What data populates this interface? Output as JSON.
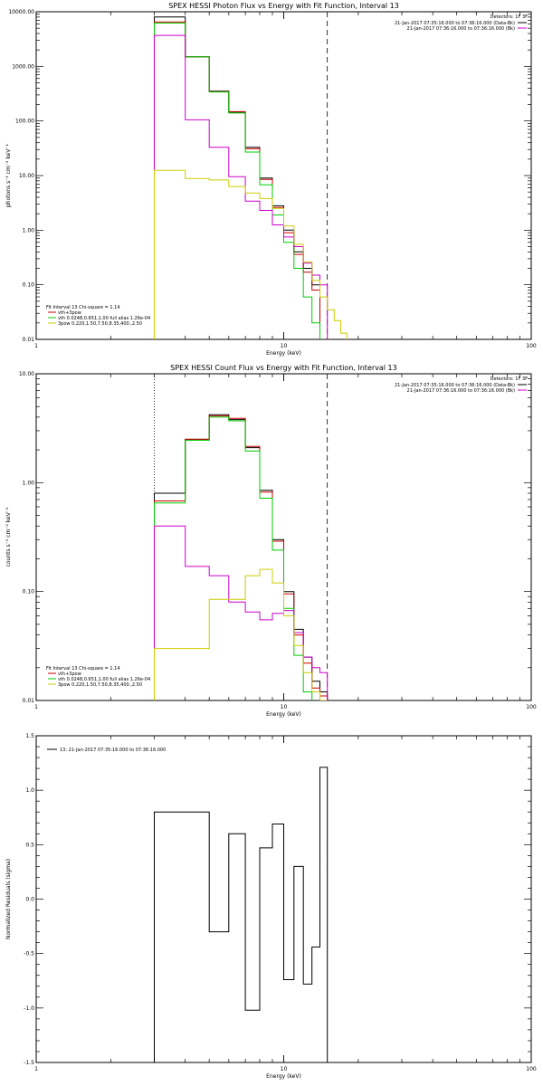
{
  "chart_data": [
    {
      "type": "line",
      "title": "SPEX HESSI Photon Flux vs Energy with Fit Function, Interval 13",
      "xlabel": "Energy (keV)",
      "ylabel": "photons s⁻¹ cm⁻² keV⁻¹",
      "xscale": "log",
      "yscale": "log",
      "xlim": [
        1,
        100
      ],
      "ylim": [
        0.01,
        10000
      ],
      "x_ticks": [
        "1",
        "10",
        "100"
      ],
      "y_ticks": [
        "0.01",
        "0.10",
        "1.00",
        "10.00",
        "100.00",
        "1000.00",
        "10000.00"
      ],
      "detectors": "Detectors: 1F 3F",
      "legend_top": [
        {
          "text": "21-Jan-2017 07:35:16.000 to 07:36:16.000 (Data-Bk)",
          "color": "#000000"
        },
        {
          "text": "21-Jan-2017 07:36:16.000 to 07:36:16.000 (Bk)",
          "color": "#cc00cc"
        }
      ],
      "legend_bottom": [
        {
          "text": "Fit Interval 13   Chi-square = 1.14",
          "color": null
        },
        {
          "text": "vth+3pow",
          "color": "#cc0000"
        },
        {
          "text": "vth 0.0248,0.651,1.00  full alias 1.26e-04",
          "color": "#00cc00"
        },
        {
          "text": "3pow 0.220,1.50,7.50,8.35,400.,2.50",
          "color": "#cccc00"
        }
      ],
      "vlines": [
        {
          "x": 3.0,
          "style": "dotted"
        },
        {
          "x": 15.0,
          "style": "dashed"
        }
      ],
      "edges": [
        3.0,
        4.0,
        5.0,
        6.0,
        7.0,
        8.0,
        9.0,
        10.0,
        11.0,
        12.0,
        13.0,
        14.0,
        15.0,
        16.0,
        17.0,
        18.0
      ],
      "series": [
        {
          "name": "Data-Bk",
          "color": "#000000",
          "values": [
            8000,
            1500,
            350,
            145,
            33,
            9,
            2.8,
            1.0,
            0.4,
            0.2,
            0.1
          ]
        },
        {
          "name": "vth+3pow",
          "color": "#cc0000",
          "values": [
            6500,
            1500,
            345,
            148,
            31,
            8.5,
            2.6,
            0.9,
            0.36,
            0.17,
            0.08
          ]
        },
        {
          "name": "vth",
          "color": "#00cc00",
          "values": [
            6200,
            1500,
            340,
            140,
            27,
            6.8,
            1.9,
            0.6,
            0.2,
            0.06,
            0.02
          ]
        },
        {
          "name": "Bk",
          "color": "#cc00cc",
          "values": [
            3700,
            105,
            33,
            9.5,
            3.4,
            2.3,
            1.25,
            0.75,
            0.5,
            0.25,
            0.15,
            0.1
          ]
        },
        {
          "name": "3pow",
          "color": "#cccc00",
          "values": [
            12.5,
            8.8,
            8.3,
            6.3,
            4.8,
            3.8,
            2.5,
            1.2,
            0.55,
            0.26,
            0.12,
            0.06,
            0.035,
            0.022,
            0.013
          ]
        }
      ]
    },
    {
      "type": "line",
      "title": "SPEX HESSI Count Flux vs Energy with Fit Function, Interval 13",
      "xlabel": "Energy (keV)",
      "ylabel": "counts s⁻¹ cm⁻² keV⁻¹",
      "xscale": "log",
      "yscale": "log",
      "xlim": [
        1,
        100
      ],
      "ylim": [
        0.01,
        10
      ],
      "x_ticks": [
        "1",
        "10",
        "100"
      ],
      "y_ticks": [
        "0.01",
        "0.10",
        "1.00",
        "10.00"
      ],
      "detectors": "Detectors: 1F 3F",
      "legend_top": [
        {
          "text": "21-Jan-2017 07:35:16.000 to 07:36:16.000 (Data-Bk)",
          "color": "#000000"
        },
        {
          "text": "21-Jan-2017 07:36:16.000 to 07:36:16.000 (Bk)",
          "color": "#cc00cc"
        }
      ],
      "legend_bottom": [
        {
          "text": "Fit Interval 13   Chi-square = 1.14",
          "color": null
        },
        {
          "text": "vth+3pow",
          "color": "#cc0000"
        },
        {
          "text": "vth 0.0248,0.651,1.00  full alias 1.26e-04",
          "color": "#00cc00"
        },
        {
          "text": "3pow 0.220,1.50,7.50,8.35,400.,2.50",
          "color": "#cccc00"
        }
      ],
      "vlines": [
        {
          "x": 3.0,
          "style": "dotted"
        },
        {
          "x": 15.0,
          "style": "dashed"
        }
      ],
      "edges": [
        3.0,
        4.0,
        5.0,
        6.0,
        7.0,
        8.0,
        9.0,
        10.0,
        11.0,
        12.0,
        13.0,
        14.0,
        15.0
      ],
      "series": [
        {
          "name": "Data-Bk",
          "color": "#000000",
          "values": [
            0.8,
            2.5,
            4.2,
            3.8,
            2.1,
            0.85,
            0.3,
            0.1,
            0.045,
            0.025,
            0.015,
            0.012
          ]
        },
        {
          "name": "vth+3pow",
          "color": "#cc0000",
          "values": [
            0.68,
            2.5,
            4.1,
            3.9,
            2.15,
            0.82,
            0.29,
            0.095,
            0.04,
            0.022,
            0.013,
            0.011
          ]
        },
        {
          "name": "vth",
          "color": "#00cc00",
          "values": [
            0.65,
            2.45,
            4.0,
            3.7,
            1.95,
            0.72,
            0.24,
            0.07,
            0.026,
            0.012
          ]
        },
        {
          "name": "Bk",
          "color": "#cc00cc",
          "values": [
            0.4,
            0.17,
            0.14,
            0.08,
            0.065,
            0.055,
            0.063,
            0.067,
            0.042,
            0.025,
            0.02,
            0.018
          ]
        },
        {
          "name": "3pow",
          "color": "#cccc00",
          "values": [
            0.03,
            0.03,
            0.085,
            0.085,
            0.14,
            0.16,
            0.12,
            0.06,
            0.032,
            0.018,
            0.012,
            0.01
          ]
        }
      ]
    },
    {
      "type": "line",
      "title": "",
      "xlabel": "Energy (keV)",
      "ylabel": "Normalized Residuals (sigma)",
      "xscale": "log",
      "yscale": "linear",
      "xlim": [
        1,
        100
      ],
      "ylim": [
        -1.5,
        1.5
      ],
      "x_ticks": [
        "1",
        "10",
        "100"
      ],
      "y_ticks": [
        "-1.5",
        "-1.0",
        "-0.5",
        "0.0",
        "0.5",
        "1.0",
        "1.5"
      ],
      "legend": {
        "text": "13: 21-Jan-2017 07:35:16.000 to 07:36:16.000",
        "color": "#000000"
      },
      "edges": [
        3.0,
        4.0,
        5.0,
        6.0,
        7.0,
        8.0,
        9.0,
        10.0,
        11.0,
        12.0,
        13.0,
        14.0,
        15.0
      ],
      "series": [
        {
          "name": "13: 21-Jan-2017 07:35:16.000 to 07:36:16.000",
          "color": "#000000",
          "values": [
            0.8,
            0.8,
            -0.3,
            0.6,
            -1.02,
            0.47,
            0.69,
            -0.74,
            0.3,
            -0.78,
            -0.44,
            1.21
          ]
        }
      ]
    }
  ]
}
